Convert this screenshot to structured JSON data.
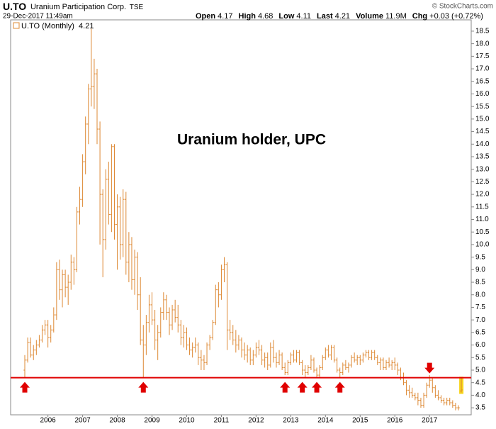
{
  "header": {
    "symbol": "U.TO",
    "company": "Uranium Participation Corp.",
    "exchange": "TSE",
    "timestamp": "29-Dec-2017 11:49am",
    "quote": [
      {
        "label": "Open",
        "value": "4.17"
      },
      {
        "label": "High",
        "value": "4.68"
      },
      {
        "label": "Low",
        "value": "4.11"
      },
      {
        "label": "Last",
        "value": "4.21"
      },
      {
        "label": "Volume",
        "value": "11.9M"
      },
      {
        "label": "Chg",
        "value": "+0.03 (+0.72%)"
      }
    ],
    "credit": "© StockCharts.com"
  },
  "chart_data": {
    "type": "ohlc",
    "legend": "U.TO (Monthly)",
    "color": "#dd8833",
    "highlight_color": "#f7d51d",
    "annotation": "Uranium holder, UPC",
    "hline": {
      "value": 4.7,
      "color": "#e00000"
    },
    "arrows": [
      {
        "index": 0,
        "direction": "up"
      },
      {
        "index": 41,
        "direction": "up"
      },
      {
        "index": 90,
        "direction": "up"
      },
      {
        "index": 96,
        "direction": "up"
      },
      {
        "index": 101,
        "direction": "up"
      },
      {
        "index": 109,
        "direction": "up"
      },
      {
        "index": 140,
        "direction": "down"
      }
    ],
    "categories": [
      null,
      null,
      null,
      null,
      null,
      null,
      null,
      null,
      "2006",
      null,
      null,
      null,
      null,
      null,
      null,
      null,
      null,
      null,
      null,
      null,
      "2007",
      null,
      null,
      null,
      null,
      null,
      null,
      null,
      null,
      null,
      null,
      null,
      "2008",
      null,
      null,
      null,
      null,
      null,
      null,
      null,
      null,
      null,
      null,
      null,
      "2009",
      null,
      null,
      null,
      null,
      null,
      null,
      null,
      null,
      null,
      null,
      null,
      "2010",
      null,
      null,
      null,
      null,
      null,
      null,
      null,
      null,
      null,
      null,
      null,
      "2011",
      null,
      null,
      null,
      null,
      null,
      null,
      null,
      null,
      null,
      null,
      null,
      "2012",
      null,
      null,
      null,
      null,
      null,
      null,
      null,
      null,
      null,
      null,
      null,
      "2013",
      null,
      null,
      null,
      null,
      null,
      null,
      null,
      null,
      null,
      null,
      null,
      "2014",
      null,
      null,
      null,
      null,
      null,
      null,
      null,
      null,
      null,
      null,
      null,
      "2015",
      null,
      null,
      null,
      null,
      null,
      null,
      null,
      null,
      null,
      null,
      null,
      "2016",
      null,
      null,
      null,
      null,
      null,
      null,
      null,
      null,
      null,
      null,
      null,
      "2017",
      null,
      null,
      null,
      null,
      null,
      null,
      null,
      null,
      null,
      null,
      null
    ],
    "open": [
      5.0,
      5.4,
      6.1,
      5.6,
      5.8,
      6.0,
      6.2,
      6.6,
      6.8,
      6.3,
      6.6,
      7.2,
      9.0,
      8.2,
      8.8,
      8.3,
      8.5,
      9.3,
      9.0,
      11.3,
      11.8,
      13.3,
      14.8,
      16.2,
      16.3,
      16.8,
      14.6,
      12.0,
      10.2,
      12.6,
      11.2,
      13.9,
      10.8,
      11.5,
      10.0,
      11.8,
      9.3,
      10.0,
      8.6,
      9.5,
      8.0,
      6.2,
      6.0,
      6.9,
      7.6,
      7.0,
      6.2,
      6.5,
      7.3,
      7.8,
      7.3,
      6.8,
      7.4,
      7.1,
      6.8,
      6.3,
      6.5,
      6.0,
      5.8,
      5.9,
      6.0,
      5.5,
      5.4,
      5.3,
      6.0,
      6.3,
      6.9,
      8.2,
      8.0,
      9.0,
      9.2,
      6.6,
      6.5,
      6.2,
      6.0,
      6.2,
      5.8,
      5.6,
      5.8,
      5.4,
      5.6,
      5.9,
      5.8,
      5.4,
      5.5,
      5.2,
      5.9,
      5.5,
      5.3,
      5.6,
      5.1,
      4.9,
      5.3,
      5.6,
      5.4,
      5.7,
      5.3,
      5.0,
      4.9,
      5.1,
      5.4,
      5.0,
      4.8,
      5.1,
      5.5,
      5.8,
      5.6,
      5.9,
      5.4,
      5.0,
      4.9,
      5.2,
      5.1,
      5.2,
      5.5,
      5.4,
      5.5,
      5.4,
      5.6,
      5.7,
      5.5,
      5.7,
      5.5,
      5.3,
      5.4,
      5.1,
      5.3,
      5.2,
      5.3,
      5.2,
      5.0,
      4.7,
      4.5,
      4.2,
      4.1,
      4.0,
      3.9,
      3.8,
      3.6,
      4.0,
      4.4,
      4.6,
      4.3,
      4.0,
      3.9,
      3.8,
      3.7,
      3.8,
      3.7,
      3.6,
      3.5,
      4.17
    ],
    "high": [
      5.6,
      6.3,
      6.3,
      6.0,
      6.2,
      6.4,
      6.8,
      7.0,
      7.0,
      6.8,
      7.5,
      9.3,
      9.4,
      9.0,
      9.0,
      8.8,
      9.6,
      9.5,
      11.5,
      12.3,
      13.6,
      15.1,
      16.4,
      18.6,
      17.4,
      17.0,
      14.9,
      12.2,
      13.0,
      13.3,
      14.0,
      14.0,
      12.0,
      11.9,
      12.2,
      12.1,
      10.5,
      10.3,
      9.8,
      9.7,
      8.7,
      6.8,
      7.2,
      8.0,
      8.1,
      7.4,
      6.8,
      7.5,
      8.1,
      8.0,
      7.5,
      7.6,
      7.8,
      7.6,
      7.0,
      6.8,
      6.7,
      6.3,
      6.1,
      6.3,
      6.1,
      5.8,
      5.6,
      6.1,
      6.4,
      7.0,
      8.4,
      8.5,
      9.2,
      9.5,
      9.3,
      7.0,
      6.8,
      6.6,
      6.4,
      6.3,
      6.1,
      6.0,
      5.9,
      5.8,
      6.1,
      6.2,
      6.0,
      5.7,
      5.7,
      6.1,
      6.2,
      5.7,
      5.8,
      5.7,
      5.3,
      5.4,
      5.7,
      5.8,
      5.8,
      5.8,
      5.4,
      5.2,
      5.2,
      5.6,
      5.5,
      5.1,
      5.2,
      5.6,
      5.9,
      6.0,
      6.0,
      6.0,
      5.5,
      5.1,
      5.3,
      5.4,
      5.3,
      5.6,
      5.7,
      5.6,
      5.6,
      5.7,
      5.8,
      5.8,
      5.8,
      5.8,
      5.6,
      5.5,
      5.5,
      5.4,
      5.5,
      5.4,
      5.5,
      5.3,
      5.1,
      4.9,
      4.6,
      4.4,
      4.3,
      4.1,
      4.1,
      3.9,
      4.1,
      4.5,
      4.8,
      4.7,
      4.4,
      4.2,
      4.0,
      3.9,
      3.9,
      3.9,
      3.8,
      3.7,
      3.6,
      4.68
    ],
    "low": [
      4.7,
      5.3,
      5.5,
      5.4,
      5.6,
      5.9,
      6.1,
      6.4,
      5.9,
      6.1,
      6.5,
      7.0,
      7.8,
      7.5,
      7.9,
      7.6,
      8.2,
      8.4,
      8.9,
      10.8,
      11.5,
      12.8,
      14.0,
      15.5,
      15.4,
      14.0,
      10.0,
      8.7,
      9.8,
      10.8,
      10.5,
      10.2,
      9.0,
      9.4,
      9.5,
      8.8,
      8.5,
      8.2,
      8.0,
      7.4,
      6.0,
      4.7,
      5.6,
      6.5,
      6.8,
      5.8,
      5.4,
      6.3,
      7.0,
      7.0,
      6.4,
      6.6,
      6.9,
      6.5,
      6.0,
      5.9,
      5.8,
      5.6,
      5.5,
      5.7,
      5.2,
      5.0,
      5.0,
      5.2,
      5.8,
      6.2,
      6.8,
      7.5,
      7.8,
      8.5,
      5.8,
      6.2,
      6.0,
      5.7,
      5.8,
      5.5,
      5.4,
      5.3,
      5.2,
      5.2,
      5.5,
      5.6,
      5.2,
      5.1,
      5.0,
      5.1,
      5.3,
      5.1,
      5.2,
      5.0,
      4.8,
      4.8,
      5.2,
      5.3,
      5.3,
      5.2,
      4.8,
      4.7,
      4.8,
      5.0,
      4.9,
      4.7,
      4.7,
      5.0,
      5.4,
      5.5,
      5.4,
      5.3,
      4.9,
      4.7,
      4.8,
      5.0,
      4.9,
      5.1,
      5.3,
      5.2,
      5.2,
      5.3,
      5.5,
      5.4,
      5.4,
      5.4,
      5.2,
      5.0,
      5.0,
      5.0,
      5.1,
      5.0,
      5.0,
      4.8,
      4.6,
      4.4,
      4.0,
      3.9,
      3.9,
      3.8,
      3.6,
      3.5,
      3.5,
      3.9,
      4.3,
      4.1,
      3.9,
      3.8,
      3.7,
      3.6,
      3.6,
      3.6,
      3.5,
      3.4,
      3.4,
      4.11
    ],
    "close": [
      5.4,
      6.1,
      5.6,
      5.8,
      6.0,
      6.2,
      6.6,
      6.8,
      6.3,
      6.6,
      7.2,
      9.0,
      8.2,
      8.8,
      8.3,
      8.5,
      9.3,
      9.0,
      11.3,
      11.8,
      13.3,
      14.8,
      16.2,
      16.3,
      16.8,
      14.6,
      12.0,
      10.2,
      12.6,
      11.2,
      13.9,
      10.8,
      11.5,
      10.0,
      11.8,
      9.3,
      10.0,
      8.6,
      9.5,
      8.0,
      6.2,
      6.0,
      6.9,
      7.6,
      7.0,
      6.2,
      6.5,
      7.3,
      7.8,
      7.3,
      6.8,
      7.4,
      7.1,
      6.8,
      6.3,
      6.5,
      6.0,
      5.8,
      5.9,
      6.0,
      5.5,
      5.4,
      5.3,
      6.0,
      6.3,
      6.9,
      8.2,
      8.0,
      9.0,
      9.2,
      6.6,
      6.5,
      6.2,
      6.0,
      6.2,
      5.8,
      5.6,
      5.8,
      5.4,
      5.6,
      5.9,
      5.8,
      5.4,
      5.5,
      5.2,
      5.9,
      5.5,
      5.3,
      5.6,
      5.1,
      4.9,
      5.3,
      5.6,
      5.4,
      5.7,
      5.3,
      5.0,
      4.9,
      5.1,
      5.4,
      5.0,
      4.8,
      5.1,
      5.5,
      5.8,
      5.6,
      5.9,
      5.4,
      5.0,
      4.9,
      5.2,
      5.1,
      5.2,
      5.5,
      5.4,
      5.5,
      5.4,
      5.6,
      5.7,
      5.5,
      5.7,
      5.5,
      5.3,
      5.4,
      5.1,
      5.3,
      5.2,
      5.3,
      5.2,
      5.0,
      4.7,
      4.5,
      4.2,
      4.1,
      4.0,
      3.9,
      3.8,
      3.6,
      4.0,
      4.4,
      4.6,
      4.3,
      4.0,
      3.9,
      3.8,
      3.7,
      3.8,
      3.7,
      3.6,
      3.5,
      3.5,
      4.21
    ],
    "ylim": [
      3.22,
      18.95
    ],
    "yticks": [
      3.5,
      {
        "value": 4,
        "label": "4.0"
      },
      4.5,
      {
        "value": 5,
        "label": "5.0"
      },
      5.5,
      {
        "value": 6,
        "label": "6.0"
      },
      6.5,
      {
        "value": 7,
        "label": "7.0"
      },
      7.5,
      {
        "value": 8,
        "label": "8.0"
      },
      8.5,
      {
        "value": 9,
        "label": "9.0"
      },
      9.5,
      {
        "value": 10,
        "label": "10.0"
      },
      10.5,
      {
        "value": 11,
        "label": "11.0"
      },
      11.5,
      {
        "value": 12,
        "label": "12.0"
      },
      12.5,
      {
        "value": 13,
        "label": "13.0"
      },
      13.5,
      {
        "value": 14,
        "label": "14.0"
      },
      14.5,
      {
        "value": 15,
        "label": "15.0"
      },
      15.5,
      {
        "value": 16,
        "label": "16.0"
      },
      16.5,
      {
        "value": 17,
        "label": "17.0"
      },
      17.5,
      {
        "value": 18,
        "label": "18.0"
      },
      18.5
    ],
    "grid": false
  }
}
